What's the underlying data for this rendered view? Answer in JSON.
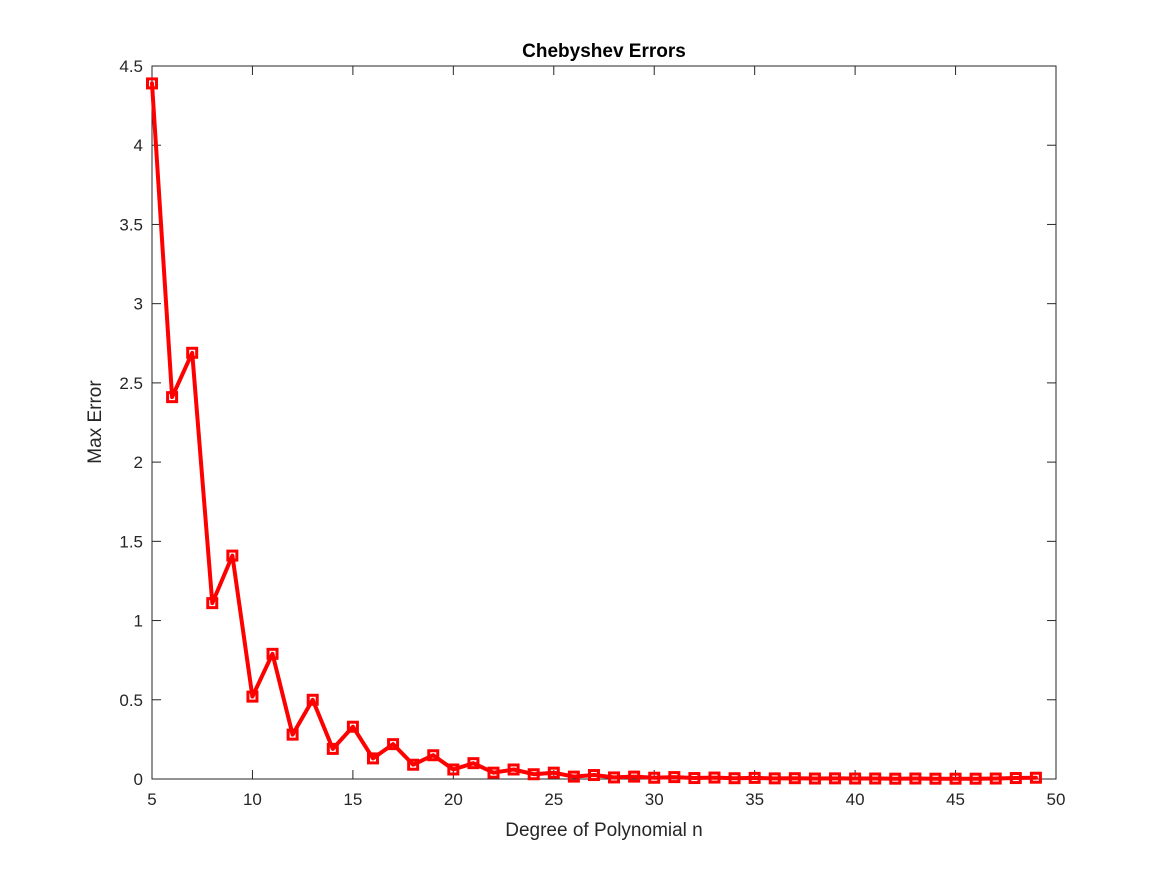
{
  "chart_data": {
    "type": "line",
    "title": "Chebyshev Errors",
    "xlabel": "Degree of Polynomial n",
    "ylabel": "Max Error",
    "xlim": [
      5,
      50
    ],
    "ylim": [
      0,
      4.5
    ],
    "xticks": [
      "5",
      "10",
      "15",
      "20",
      "25",
      "30",
      "35",
      "40",
      "45",
      "50"
    ],
    "yticks": [
      "0",
      "0.5",
      "1",
      "1.5",
      "2",
      "2.5",
      "3",
      "3.5",
      "4",
      "4.5"
    ],
    "grid": false,
    "legend": "none",
    "series": [
      {
        "color": "#ff0000",
        "marker": "square",
        "x": [
          5,
          6,
          7,
          8,
          9,
          10,
          11,
          12,
          13,
          14,
          15,
          16,
          17,
          18,
          19,
          20,
          21,
          22,
          23,
          24,
          25,
          26,
          27,
          28,
          29,
          30,
          31,
          32,
          33,
          34,
          35,
          36,
          37,
          38,
          39,
          40,
          41,
          42,
          43,
          44,
          45,
          46,
          47,
          48,
          49
        ],
        "y": [
          4.39,
          2.41,
          2.69,
          1.11,
          1.41,
          0.52,
          0.79,
          0.28,
          0.5,
          0.19,
          0.33,
          0.13,
          0.22,
          0.09,
          0.15,
          0.06,
          0.1,
          0.04,
          0.06,
          0.03,
          0.04,
          0.015,
          0.025,
          0.01,
          0.015,
          0.008,
          0.012,
          0.006,
          0.009,
          0.005,
          0.007,
          0.004,
          0.005,
          0.003,
          0.004,
          0.003,
          0.003,
          0.002,
          0.003,
          0.002,
          0.002,
          0.002,
          0.003,
          0.006,
          0.008
        ]
      }
    ]
  }
}
